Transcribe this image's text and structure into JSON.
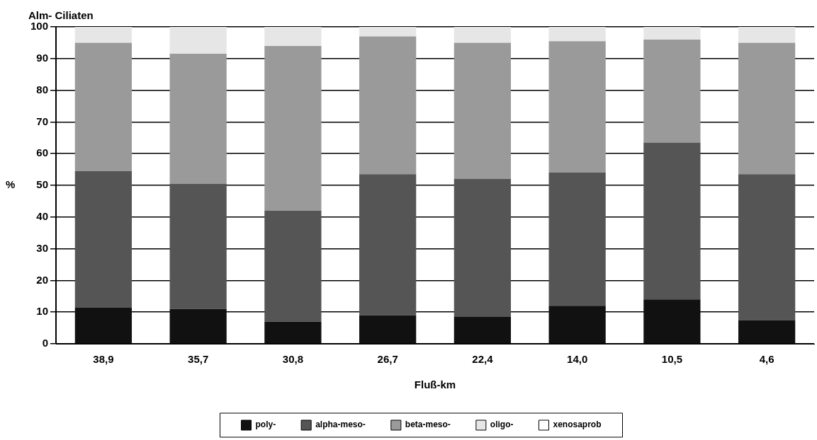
{
  "chart_data": {
    "type": "bar",
    "title": "Alm- Ciliaten",
    "xlabel": "Fluß-km",
    "ylabel": "%",
    "stacked": true,
    "categories": [
      "38,9",
      "35,7",
      "30,8",
      "26,7",
      "22,4",
      "14,0",
      "10,5",
      "4,6"
    ],
    "series": [
      {
        "name": "poly-",
        "color": "#111111",
        "values": [
          11.5,
          11,
          7,
          9,
          8.5,
          12,
          14,
          7.5
        ]
      },
      {
        "name": "alpha-meso-",
        "color": "#555555",
        "values": [
          43,
          39.5,
          35,
          44.5,
          43.5,
          42,
          49.5,
          46
        ]
      },
      {
        "name": "beta-meso-",
        "color": "#9a9a9a",
        "values": [
          40.5,
          41,
          52,
          43.5,
          43,
          41.5,
          32.5,
          41.5
        ]
      },
      {
        "name": "oligo-",
        "color": "#e6e6e6",
        "values": [
          5,
          8.5,
          6,
          3,
          5,
          4.5,
          4,
          5
        ]
      },
      {
        "name": "xenosaprob",
        "color": "#ffffff",
        "values": [
          0,
          0,
          0,
          0,
          0,
          0,
          0,
          0
        ]
      }
    ],
    "ylim": [
      0,
      100
    ],
    "yticks": [
      0,
      10,
      20,
      30,
      40,
      50,
      60,
      70,
      80,
      90,
      100
    ],
    "grid": "y",
    "legend": "bottom"
  }
}
